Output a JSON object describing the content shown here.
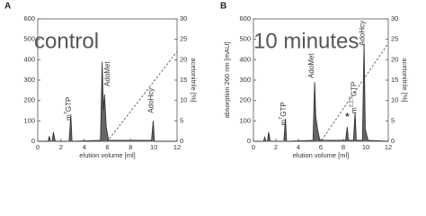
{
  "chart_data": [
    {
      "type": "line",
      "panel": "A",
      "big_label": "control",
      "x": [
        0,
        0.9,
        1.0,
        1.1,
        1.25,
        1.35,
        1.5,
        2.7,
        2.85,
        2.95,
        3.1,
        5.4,
        5.55,
        5.65,
        5.75,
        5.9,
        6.1,
        9.8,
        9.95,
        10.05,
        10.2,
        12
      ],
      "y": [
        0,
        0,
        25,
        0,
        0,
        45,
        0,
        0,
        130,
        0,
        0,
        5,
        390,
        150,
        230,
        70,
        5,
        5,
        100,
        0,
        0,
        0
      ],
      "color": "#333333",
      "fill": "#666666",
      "gradient": {
        "x": [
          0,
          6,
          12
        ],
        "y": [
          0,
          0,
          22
        ],
        "axis": "y2"
      },
      "xlabel": "elution volume [ml]",
      "y2label": "acetonitrile [%]",
      "xlim": [
        0,
        12
      ],
      "xticks": [
        0,
        2,
        4,
        6,
        8,
        10,
        12
      ],
      "ylim": [
        0,
        600
      ],
      "yticks": [
        0,
        100,
        200,
        300,
        400,
        500,
        600
      ],
      "y2lim": [
        0,
        30
      ],
      "y2ticks": [
        0,
        5,
        10,
        15,
        20,
        25,
        30
      ],
      "annotations": [
        {
          "prefix": "m",
          "sup": "7",
          "suffix": "GTP"
        },
        {
          "prefix": "AdoMet"
        },
        {
          "prefix": "AdoHcy"
        }
      ]
    },
    {
      "type": "line",
      "panel": "B",
      "big_label": "10 minutes",
      "x": [
        0,
        0.9,
        1.0,
        1.1,
        1.25,
        1.35,
        1.5,
        2.7,
        2.85,
        2.95,
        3.1,
        5.3,
        5.45,
        5.55,
        5.7,
        5.9,
        8.2,
        8.35,
        8.45,
        8.9,
        9.05,
        9.15,
        9.7,
        9.85,
        9.95,
        10.2,
        12
      ],
      "y": [
        0,
        0,
        20,
        0,
        0,
        45,
        0,
        0,
        110,
        0,
        0,
        5,
        290,
        120,
        60,
        5,
        5,
        70,
        5,
        5,
        140,
        5,
        5,
        480,
        60,
        5,
        0
      ],
      "color": "#333333",
      "fill": "#666666",
      "gradient": {
        "x": [
          0,
          6,
          12
        ],
        "y": [
          0,
          0,
          24
        ],
        "axis": "y2"
      },
      "xlabel": "elution volume [ml]",
      "ylabel": "absorption 260 nm [mAU]",
      "y2label": "acetonitrile [%]",
      "xlim": [
        0,
        12
      ],
      "xticks": [
        0,
        2,
        4,
        6,
        8,
        10,
        12
      ],
      "ylim": [
        0,
        600
      ],
      "yticks": [
        0,
        100,
        200,
        300,
        400,
        500,
        600
      ],
      "y2lim": [
        0,
        30
      ],
      "y2ticks": [
        0,
        5,
        10,
        15,
        20,
        25,
        30
      ],
      "annotations": [
        {
          "prefix": "m",
          "sup": "7",
          "suffix": "GTP"
        },
        {
          "prefix": "AdoMet"
        },
        {
          "prefix": "*"
        },
        {
          "prefix": "m",
          "sup": "2,2,7",
          "suffix": "GTP"
        },
        {
          "prefix": "AdoHcy"
        }
      ]
    }
  ]
}
